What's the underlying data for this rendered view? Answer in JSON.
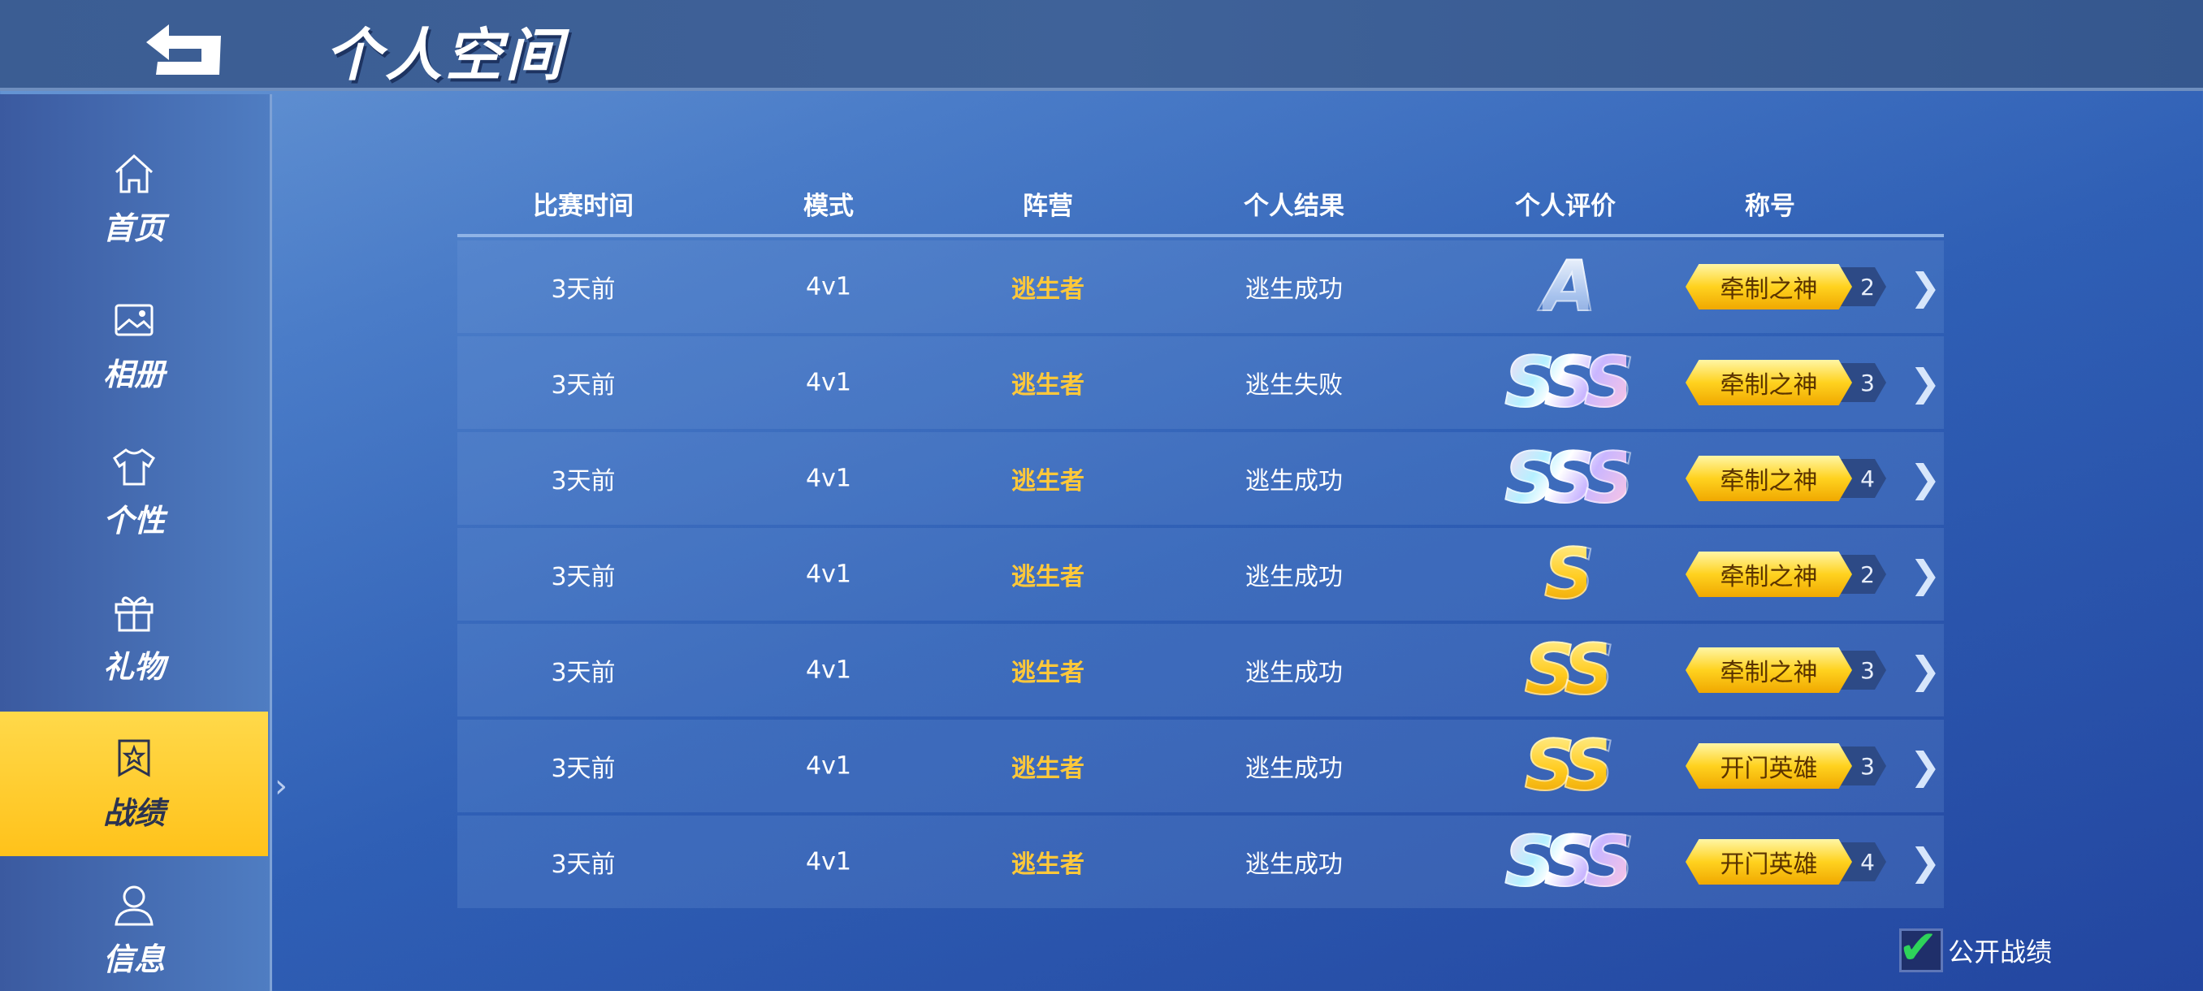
{
  "header": {
    "title": "个人空间",
    "back_icon": "back-arrow-icon"
  },
  "sidebar": {
    "items": [
      {
        "label": "首页",
        "icon": "home-icon"
      },
      {
        "label": "相册",
        "icon": "image-icon"
      },
      {
        "label": "个性",
        "icon": "shirt-icon"
      },
      {
        "label": "礼物",
        "icon": "gift-icon"
      },
      {
        "label": "战绩",
        "icon": "badge-star-icon",
        "active": true
      },
      {
        "label": "信息",
        "icon": "user-icon"
      }
    ]
  },
  "table": {
    "columns": [
      "比赛时间",
      "模式",
      "阵营",
      "个人结果",
      "个人评价",
      "称号"
    ],
    "rows": [
      {
        "time": "3天前",
        "mode": "4v1",
        "camp": "逃生者",
        "result": "逃生成功",
        "grade": "A",
        "title": "牵制之神",
        "count": "2"
      },
      {
        "time": "3天前",
        "mode": "4v1",
        "camp": "逃生者",
        "result": "逃生失败",
        "grade": "SSS",
        "title": "牵制之神",
        "count": "3"
      },
      {
        "time": "3天前",
        "mode": "4v1",
        "camp": "逃生者",
        "result": "逃生成功",
        "grade": "SSS",
        "title": "牵制之神",
        "count": "4"
      },
      {
        "time": "3天前",
        "mode": "4v1",
        "camp": "逃生者",
        "result": "逃生成功",
        "grade": "S",
        "title": "牵制之神",
        "count": "2"
      },
      {
        "time": "3天前",
        "mode": "4v1",
        "camp": "逃生者",
        "result": "逃生成功",
        "grade": "SS",
        "title": "牵制之神",
        "count": "3"
      },
      {
        "time": "3天前",
        "mode": "4v1",
        "camp": "逃生者",
        "result": "逃生成功",
        "grade": "SS",
        "title": "开门英雄",
        "count": "3"
      },
      {
        "time": "3天前",
        "mode": "4v1",
        "camp": "逃生者",
        "result": "逃生成功",
        "grade": "SSS",
        "title": "开门英雄",
        "count": "4"
      }
    ]
  },
  "public_record": {
    "label": "公开战绩",
    "checked": true
  },
  "colors": {
    "accent": "#ffc83a",
    "active_nav": "#ffd23a",
    "check": "#2ed35a"
  }
}
